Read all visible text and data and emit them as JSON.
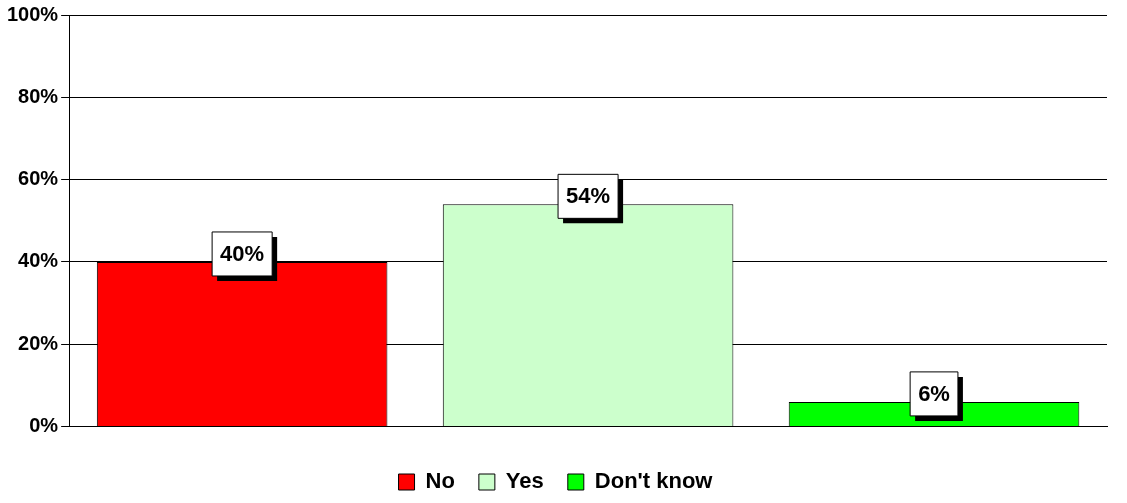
{
  "chart_data": {
    "type": "bar",
    "categories": [
      null,
      null,
      null
    ],
    "series": [
      {
        "name": "No",
        "color": "#ff0000",
        "values": [
          40,
          null,
          null
        ],
        "value_labels": [
          "40%",
          null,
          null
        ]
      },
      {
        "name": "Yes",
        "color": "#ccffcc",
        "values": [
          null,
          54,
          null
        ],
        "value_labels": [
          null,
          "54%",
          null
        ]
      },
      {
        "name": "Don't know",
        "color": "#00ff00",
        "values": [
          null,
          null,
          6
        ],
        "value_labels": [
          null,
          null,
          "6%"
        ]
      }
    ],
    "ylim": [
      0,
      100
    ],
    "yticks": [
      {
        "value": 0,
        "label": "0%"
      },
      {
        "value": 20,
        "label": "20%"
      },
      {
        "value": 40,
        "label": "40%"
      },
      {
        "value": 60,
        "label": "60%"
      },
      {
        "value": 80,
        "label": "80%"
      },
      {
        "value": 100,
        "label": "100%"
      }
    ],
    "grid": "y",
    "legend": "bottom"
  }
}
